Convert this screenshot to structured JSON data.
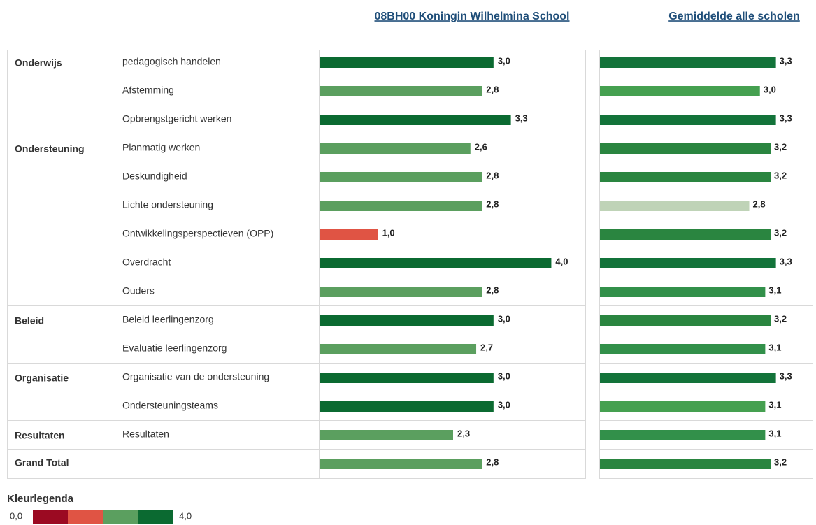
{
  "header": {
    "school": "08BH00 Koningin Wilhelmina School",
    "average": "Gemiddelde alle scholen"
  },
  "school_xlim": [
    0,
    4.6
  ],
  "avg_xlim": [
    0,
    4
  ],
  "groups": [
    {
      "label": "Onderwijs",
      "rows": [
        {
          "item": "pedagogisch handelen",
          "school": 3.0,
          "school_label": "3,0",
          "school_color": "#0b6a31",
          "avg": 3.3,
          "avg_label": "3,3",
          "avg_color": "#13733a"
        },
        {
          "item": "Afstemming",
          "school": 2.8,
          "school_label": "2,8",
          "school_color": "#5b9f5f",
          "avg": 3.0,
          "avg_label": "3,0",
          "avg_color": "#45a050"
        },
        {
          "item": "Opbrengstgericht werken",
          "school": 3.3,
          "school_label": "3,3",
          "school_color": "#0b6a31",
          "avg": 3.3,
          "avg_label": "3,3",
          "avg_color": "#13733a"
        }
      ]
    },
    {
      "label": "Ondersteuning",
      "rows": [
        {
          "item": "Planmatig werken",
          "school": 2.6,
          "school_label": "2,6",
          "school_color": "#5b9f5f",
          "avg": 3.2,
          "avg_label": "3,2",
          "avg_color": "#2a8540"
        },
        {
          "item": "Deskundigheid",
          "school": 2.8,
          "school_label": "2,8",
          "school_color": "#5b9f5f",
          "avg": 3.2,
          "avg_label": "3,2",
          "avg_color": "#2a8540"
        },
        {
          "item": "Lichte ondersteuning",
          "school": 2.8,
          "school_label": "2,8",
          "school_color": "#5b9f5f",
          "avg": 2.8,
          "avg_label": "2,8",
          "avg_color": "#bfd3b7"
        },
        {
          "item": "Ontwikkelingsperspectieven (OPP)",
          "school": 1.0,
          "school_label": "1,0",
          "school_color": "#e05444",
          "avg": 3.2,
          "avg_label": "3,2",
          "avg_color": "#2a8540"
        },
        {
          "item": "Overdracht",
          "school": 4.0,
          "school_label": "4,0",
          "school_color": "#0b6a31",
          "avg": 3.3,
          "avg_label": "3,3",
          "avg_color": "#13733a"
        },
        {
          "item": "Ouders",
          "school": 2.8,
          "school_label": "2,8",
          "school_color": "#5b9f5f",
          "avg": 3.1,
          "avg_label": "3,1",
          "avg_color": "#32904a"
        }
      ]
    },
    {
      "label": "Beleid",
      "rows": [
        {
          "item": "Beleid leerlingenzorg",
          "school": 3.0,
          "school_label": "3,0",
          "school_color": "#0b6a31",
          "avg": 3.2,
          "avg_label": "3,2",
          "avg_color": "#2a8540"
        },
        {
          "item": "Evaluatie leerlingenzorg",
          "school": 2.7,
          "school_label": "2,7",
          "school_color": "#5b9f5f",
          "avg": 3.1,
          "avg_label": "3,1",
          "avg_color": "#32904a"
        }
      ]
    },
    {
      "label": "Organisatie",
      "rows": [
        {
          "item": "Organisatie van de ondersteuning",
          "school": 3.0,
          "school_label": "3,0",
          "school_color": "#0b6a31",
          "avg": 3.3,
          "avg_label": "3,3",
          "avg_color": "#13733a"
        },
        {
          "item": "Ondersteuningsteams",
          "school": 3.0,
          "school_label": "3,0",
          "school_color": "#0b6a31",
          "avg": 3.1,
          "avg_label": "3,1",
          "avg_color": "#45a050"
        }
      ]
    },
    {
      "label": "Resultaten",
      "rows": [
        {
          "item": "Resultaten",
          "school": 2.3,
          "school_label": "2,3",
          "school_color": "#5b9f5f",
          "avg": 3.1,
          "avg_label": "3,1",
          "avg_color": "#32904a"
        }
      ]
    }
  ],
  "grand_total": {
    "label": "Grand Total",
    "school": 2.8,
    "school_label": "2,8",
    "school_color": "#5b9f5f",
    "avg": 3.2,
    "avg_label": "3,2",
    "avg_color": "#2a8540"
  },
  "legend": {
    "title": "Kleurlegenda",
    "min_label": "0,0",
    "max_label": "4,0",
    "colors": [
      "#9b0a22",
      "#e05444",
      "#5b9f5f",
      "#0b6a31"
    ]
  }
}
